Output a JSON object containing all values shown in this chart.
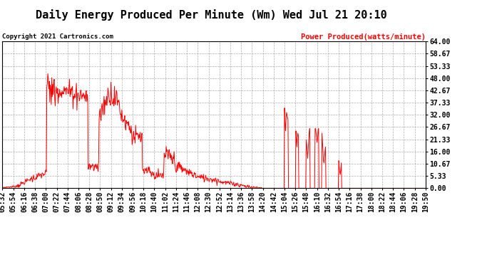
{
  "title": "Daily Energy Produced Per Minute (Wm) Wed Jul 21 20:10",
  "copyright": "Copyright 2021 Cartronics.com",
  "legend_label": "Power Produced(watts/minute)",
  "line_color": "red",
  "background_color": "#ffffff",
  "grid_color": "#999999",
  "title_fontsize": 11,
  "tick_fontsize": 7,
  "ymin": 0.0,
  "ymax": 64.0,
  "ytick_values": [
    0.0,
    5.33,
    10.67,
    16.0,
    21.33,
    26.67,
    32.0,
    37.33,
    42.67,
    48.0,
    53.33,
    58.67,
    64.0
  ],
  "ytick_labels": [
    "0.00",
    "5.33",
    "10.67",
    "16.00",
    "21.33",
    "26.67",
    "32.00",
    "37.33",
    "42.67",
    "48.00",
    "53.33",
    "58.67",
    "64.00"
  ],
  "xtick_labels": [
    "05:32",
    "05:54",
    "06:16",
    "06:38",
    "07:00",
    "07:22",
    "07:44",
    "08:06",
    "08:28",
    "08:50",
    "09:12",
    "09:34",
    "09:56",
    "10:18",
    "10:40",
    "11:02",
    "11:24",
    "11:46",
    "12:08",
    "12:30",
    "12:52",
    "13:14",
    "13:36",
    "13:58",
    "14:20",
    "14:42",
    "15:04",
    "15:26",
    "15:48",
    "16:10",
    "16:32",
    "16:54",
    "17:16",
    "17:38",
    "18:00",
    "18:22",
    "18:44",
    "19:06",
    "19:28",
    "19:50"
  ],
  "figsize": [
    6.9,
    3.75
  ],
  "dpi": 100
}
